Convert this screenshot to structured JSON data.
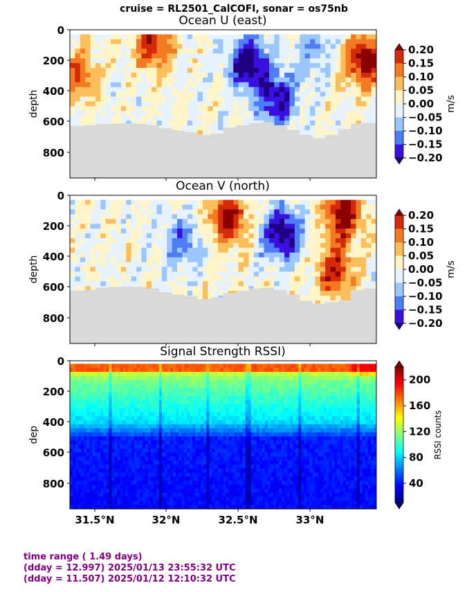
{
  "suptitle": "cruise = RL2501_CalCOFI,  sonar = os75nb",
  "footer": {
    "line1": "time range ( 1.49 days)",
    "line2": "(dday = 12.997) 2025/01/13 23:55:32 UTC",
    "line3": "(dday = 11.507) 2025/01/12 12:10:32 UTC"
  },
  "colors": {
    "land_mask": "#d9d9d9",
    "footer_text": "#800080"
  },
  "chart_data": [
    {
      "type": "heatmap",
      "title": "Ocean U (east)",
      "ylabel": "depth",
      "xlim": [
        31.33,
        33.43
      ],
      "ylim": [
        970,
        0
      ],
      "yticks": [
        "0",
        "200",
        "400",
        "600",
        "800"
      ],
      "colormap": "blue-white-red",
      "colorbar": {
        "label": "m/s",
        "range": [
          -0.2,
          0.2
        ],
        "ticks": [
          "0.20",
          "0.15",
          "0.10",
          "0.05",
          "0.00",
          "−0.05",
          "−0.10",
          "−0.15",
          "−0.20"
        ]
      },
      "bottom_depth": [
        630,
        625,
        618,
        615,
        612,
        615,
        625,
        645,
        660,
        670,
        690,
        680,
        640,
        625,
        610,
        605,
        625,
        655,
        690,
        710,
        690,
        650,
        615,
        610
      ],
      "features": [
        {
          "lat": 32.55,
          "depth": 220,
          "value": -0.2
        },
        {
          "lat": 32.75,
          "depth": 450,
          "value": -0.18
        },
        {
          "lat": 33.35,
          "depth": 200,
          "value": 0.2
        },
        {
          "lat": 31.38,
          "depth": 300,
          "value": 0.12
        },
        {
          "lat": 31.9,
          "depth": 90,
          "value": 0.15
        },
        {
          "lat": 33.0,
          "depth": 150,
          "value": -0.08
        }
      ]
    },
    {
      "type": "heatmap",
      "title": "Ocean V (north)",
      "ylabel": "depth",
      "xlim": [
        31.33,
        33.43
      ],
      "ylim": [
        970,
        0
      ],
      "yticks": [
        "0",
        "200",
        "400",
        "600",
        "800"
      ],
      "colormap": "blue-white-red",
      "colorbar": {
        "label": "m/s",
        "range": [
          -0.2,
          0.2
        ],
        "ticks": [
          "0.20",
          "0.15",
          "0.10",
          "0.05",
          "0.00",
          "−0.05",
          "−0.10",
          "−0.15",
          "−0.20"
        ]
      },
      "bottom_depth": [
        625,
        620,
        605,
        600,
        598,
        600,
        610,
        635,
        650,
        660,
        680,
        670,
        640,
        625,
        610,
        605,
        620,
        650,
        690,
        710,
        700,
        690,
        620,
        610
      ],
      "features": [
        {
          "lat": 32.78,
          "depth": 250,
          "value": -0.2
        },
        {
          "lat": 32.42,
          "depth": 150,
          "value": 0.18
        },
        {
          "lat": 33.2,
          "depth": 120,
          "value": 0.2
        },
        {
          "lat": 33.15,
          "depth": 500,
          "value": 0.15
        },
        {
          "lat": 32.1,
          "depth": 300,
          "value": -0.1
        }
      ]
    },
    {
      "type": "heatmap",
      "title": "Signal Strength RSSI)",
      "ylabel": "dep",
      "xlim": [
        31.33,
        33.43
      ],
      "ylim": [
        970,
        0
      ],
      "yticks": [
        "0",
        "200",
        "400",
        "600",
        "800"
      ],
      "xticks": [
        31.5,
        32.0,
        32.5,
        33.0
      ],
      "xticklabels": [
        "31.5°N",
        "32°N",
        "32.5°N",
        "33°N"
      ],
      "colormap": "jet",
      "colorbar": {
        "label": "RSSI counts",
        "range": [
          10,
          220
        ],
        "ticks": [
          "200",
          "160",
          "120",
          "80",
          "40"
        ]
      }
    }
  ]
}
